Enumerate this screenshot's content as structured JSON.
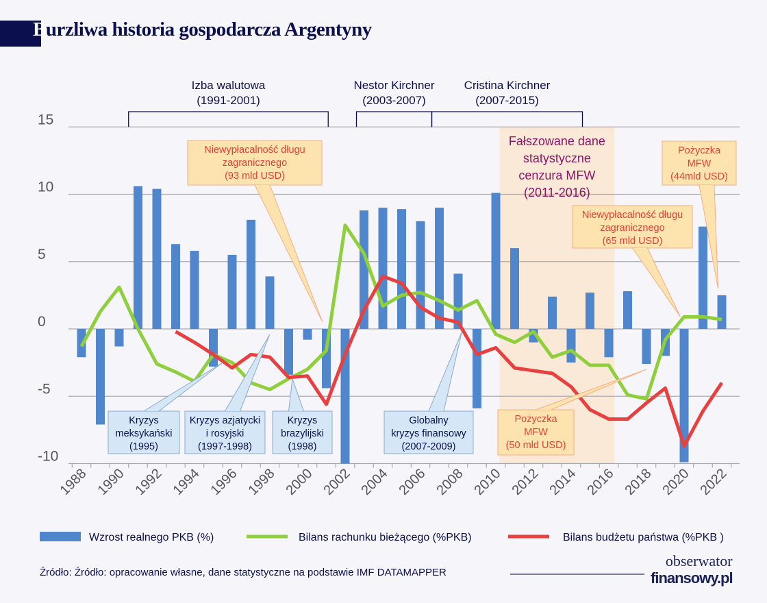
{
  "title_first": "B",
  "title_rest": "urzliwa historia gospodarcza Argentyny",
  "source": "Źródło: Źródło: opracowanie własne, dane statystyczne na podstawie IMF DATAMAPPER",
  "logo": {
    "line1": "obserwator",
    "line2": "finansowy.pl"
  },
  "periods": [
    {
      "lines": [
        "Izba walutowa",
        "(1991-2001)"
      ],
      "from": 1990.5,
      "to": 2001.1
    },
    {
      "lines": [
        "Nestor Kirchner",
        "(2003-2007)"
      ],
      "from": 2002.6,
      "to": 2006.6
    },
    {
      "lines": [
        "Cristina Kirchner",
        "(2007-2015)"
      ],
      "from": 2006.6,
      "to": 2014.6
    }
  ],
  "shaded_period": {
    "lines": [
      "Fałszowane dane",
      "statystyczne",
      "cenzura MFW",
      "(2011-2016)"
    ],
    "from": 2010.2,
    "to": 2016.3,
    "color": "#fbe6d0",
    "text_color": "#8b1466"
  },
  "annotations": [
    {
      "lines": [
        "Niewypłacalność długu",
        "zagranicznego",
        "(93 mld USD)"
      ],
      "style": "orange",
      "target_year": 2000.8,
      "target_value": 0.5
    },
    {
      "lines": [
        "Kryzys",
        "meksykański",
        "(1995)"
      ],
      "style": "blue",
      "target_year": 1995.5,
      "target_value": -2.5
    },
    {
      "lines": [
        "Kryzys azjatycki",
        "i rosyjski",
        "(1997-1998)"
      ],
      "style": "blue",
      "target_year": 1998,
      "target_value": -0.4
    },
    {
      "lines": [
        "Kryzys",
        "brazylijski",
        "(1998)"
      ],
      "style": "blue",
      "target_year": 1999.2,
      "target_value": -3.7
    },
    {
      "lines": [
        "Globalny",
        "kryzys finansowy",
        "(2007-2009)"
      ],
      "style": "blue",
      "target_year": 2008.2,
      "target_value": -0.2
    },
    {
      "lines": [
        "Pożyczka",
        "MFW",
        "(50 mld USD)"
      ],
      "style": "orange",
      "target_year": 2018,
      "target_value": -3.0
    },
    {
      "lines": [
        "Niewypłacalność długu",
        "zagranicznego",
        "(65 mld USD)"
      ],
      "style": "orange",
      "target_year": 2019.8,
      "target_value": 0.9
    },
    {
      "lines": [
        "Pożyczka",
        "MFW",
        "(44mld USD)"
      ],
      "style": "orange",
      "target_year": 2021.8,
      "target_value": 3.0
    }
  ],
  "chart_data": {
    "type": "bar+line",
    "title": "Burzliwa historia gospodarcza Argentyny",
    "xlabel": "",
    "ylabel": "",
    "ylim": [
      -10,
      15
    ],
    "yticks": [
      15,
      10,
      5,
      0,
      -5,
      -10
    ],
    "xticks": [
      1988,
      1990,
      1992,
      1994,
      1996,
      1998,
      2000,
      2002,
      2004,
      2006,
      2008,
      2010,
      2012,
      2014,
      2016,
      2018,
      2020,
      2022
    ],
    "grid": true,
    "legend_position": "bottom",
    "x": [
      1988,
      1989,
      1990,
      1991,
      1992,
      1993,
      1994,
      1995,
      1996,
      1997,
      1998,
      1999,
      2000,
      2001,
      2002,
      2003,
      2004,
      2005,
      2006,
      2007,
      2008,
      2009,
      2010,
      2011,
      2012,
      2013,
      2014,
      2015,
      2016,
      2017,
      2018,
      2019,
      2020,
      2021,
      2022
    ],
    "series": [
      {
        "name": "Wzrost realnego PKB (%)",
        "kind": "bar",
        "color": "#4f86cc",
        "values": [
          -2.1,
          -7.1,
          -1.3,
          10.6,
          10.4,
          6.3,
          5.8,
          -2.8,
          5.5,
          8.1,
          3.9,
          -3.4,
          -0.8,
          -4.4,
          -10.9,
          8.8,
          9.0,
          8.9,
          8.0,
          9.0,
          4.1,
          -5.9,
          10.1,
          6.0,
          -1.0,
          2.4,
          -2.5,
          2.7,
          -2.1,
          2.8,
          -2.6,
          -2.0,
          -9.9,
          7.6,
          2.5
        ]
      },
      {
        "name": "Bilans rachunku bieżącego (%PKB)",
        "kind": "line",
        "color": "#8fcf3c",
        "values": [
          -1.3,
          1.3,
          3.1,
          0.0,
          -2.6,
          -3.2,
          -3.9,
          -1.9,
          -2.5,
          -4.0,
          -4.5,
          -3.7,
          -3.0,
          -1.6,
          7.7,
          5.6,
          1.7,
          2.5,
          2.7,
          2.1,
          1.4,
          2.1,
          -0.4,
          -1.0,
          -0.2,
          -2.1,
          -1.6,
          -2.7,
          -2.7,
          -4.9,
          -5.2,
          -0.8,
          0.9,
          0.9,
          0.7
        ]
      },
      {
        "name": "Bilans budżetu państwa (%PKB )",
        "kind": "line",
        "color": "#e8403f",
        "values": [
          null,
          null,
          null,
          null,
          null,
          -0.2,
          -1.0,
          -1.9,
          -2.9,
          -1.9,
          -2.1,
          -3.6,
          -3.5,
          -5.6,
          -1.9,
          1.4,
          3.9,
          3.4,
          1.6,
          0.8,
          0.5,
          -1.9,
          -1.4,
          -2.9,
          -3.1,
          -3.3,
          -4.3,
          -6.0,
          -6.7,
          -6.7,
          -5.5,
          -4.4,
          -8.7,
          -6.1,
          -4.0
        ]
      }
    ]
  }
}
